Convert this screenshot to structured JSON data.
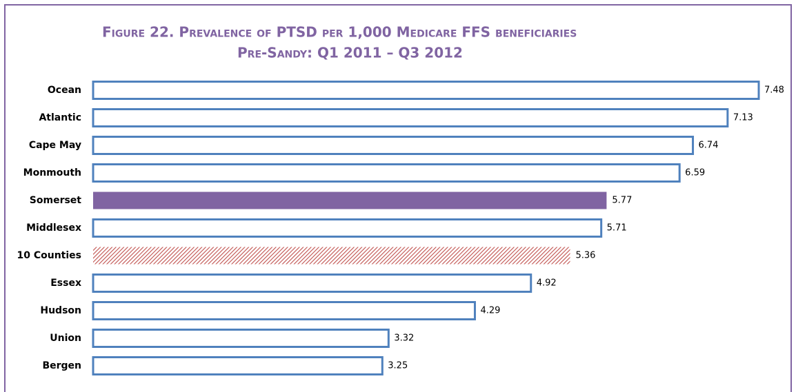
{
  "chart_data": {
    "type": "barh",
    "title": "Figure 22. Prevalence of PTSD per 1,000 Medicare FFS beneficiaries",
    "subtitle": "Pre-Sandy: Q1 2011 – Q3 2012",
    "categories": [
      "Ocean",
      "Atlantic",
      "Cape May",
      "Monmouth",
      "Somerset",
      "Middlesex",
      "10 Counties",
      "Essex",
      "Hudson",
      "Union",
      "Bergen"
    ],
    "values": [
      7.48,
      7.13,
      6.74,
      6.59,
      5.77,
      5.71,
      5.36,
      4.92,
      4.29,
      3.32,
      3.25
    ],
    "color": "#4f81bd",
    "highlight_color": "#8064a2",
    "hatch_color": "#c0504d",
    "bar_styles": [
      "outline",
      "outline",
      "outline",
      "outline",
      "solid",
      "outline",
      "hatched",
      "outline",
      "outline",
      "outline",
      "outline"
    ]
  }
}
